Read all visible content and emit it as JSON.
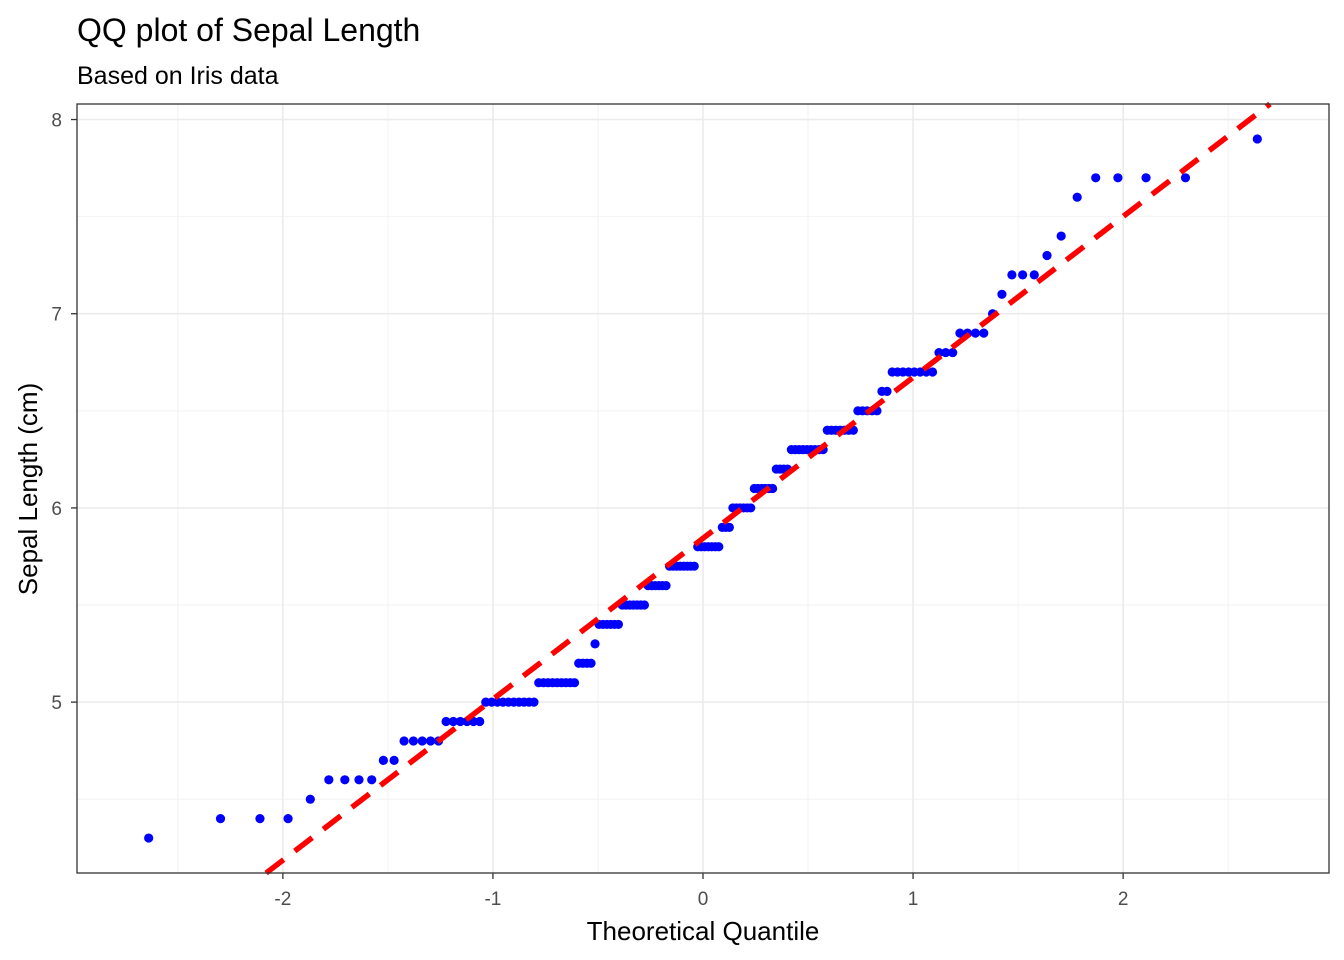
{
  "chart_data": {
    "type": "scatter",
    "title": "QQ plot of Sepal Length",
    "subtitle": "Based on Iris data",
    "xlabel": "Theoretical Quantile",
    "ylabel": "Sepal Length (cm)",
    "xlim": [
      -2.98,
      2.98
    ],
    "ylim": [
      4.12,
      8.08
    ],
    "x_ticks": [
      -2,
      -1,
      0,
      1,
      2
    ],
    "x_tick_labels": [
      "-2",
      "-1",
      "0",
      "1",
      "2"
    ],
    "y_ticks": [
      5,
      6,
      7,
      8
    ],
    "y_tick_labels": [
      "5",
      "6",
      "7",
      "8"
    ],
    "grid": true,
    "point_color": "#0000ff",
    "line_color": "#ff0000",
    "reference_line": {
      "style": "dashed",
      "slope": 0.8287,
      "intercept": 5.8433
    },
    "sample_values": [
      4.3,
      4.4,
      4.4,
      4.4,
      4.5,
      4.6,
      4.6,
      4.6,
      4.6,
      4.7,
      4.7,
      4.8,
      4.8,
      4.8,
      4.8,
      4.8,
      4.9,
      4.9,
      4.9,
      4.9,
      4.9,
      4.9,
      5.0,
      5.0,
      5.0,
      5.0,
      5.0,
      5.0,
      5.0,
      5.0,
      5.0,
      5.0,
      5.1,
      5.1,
      5.1,
      5.1,
      5.1,
      5.1,
      5.1,
      5.1,
      5.1,
      5.2,
      5.2,
      5.2,
      5.2,
      5.3,
      5.4,
      5.4,
      5.4,
      5.4,
      5.4,
      5.4,
      5.5,
      5.5,
      5.5,
      5.5,
      5.5,
      5.5,
      5.5,
      5.6,
      5.6,
      5.6,
      5.6,
      5.6,
      5.6,
      5.7,
      5.7,
      5.7,
      5.7,
      5.7,
      5.7,
      5.7,
      5.7,
      5.8,
      5.8,
      5.8,
      5.8,
      5.8,
      5.8,
      5.8,
      5.9,
      5.9,
      5.9,
      6.0,
      6.0,
      6.0,
      6.0,
      6.0,
      6.0,
      6.1,
      6.1,
      6.1,
      6.1,
      6.1,
      6.1,
      6.2,
      6.2,
      6.2,
      6.2,
      6.3,
      6.3,
      6.3,
      6.3,
      6.3,
      6.3,
      6.3,
      6.3,
      6.3,
      6.4,
      6.4,
      6.4,
      6.4,
      6.4,
      6.4,
      6.4,
      6.5,
      6.5,
      6.5,
      6.5,
      6.5,
      6.6,
      6.6,
      6.7,
      6.7,
      6.7,
      6.7,
      6.7,
      6.7,
      6.7,
      6.7,
      6.8,
      6.8,
      6.8,
      6.9,
      6.9,
      6.9,
      6.9,
      7.0,
      7.1,
      7.2,
      7.2,
      7.2,
      7.3,
      7.4,
      7.6,
      7.7,
      7.7,
      7.7,
      7.7,
      7.9
    ]
  }
}
